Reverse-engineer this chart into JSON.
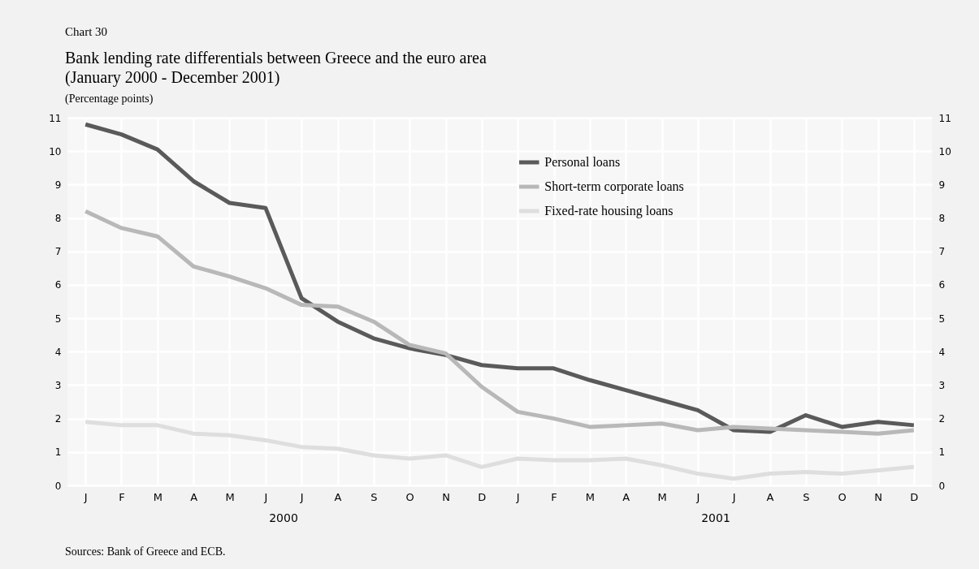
{
  "chart_data": {
    "type": "line",
    "title": "Bank lending rate differentials between Greece and the euro area\n(January 2000 - December 2001)",
    "ylabel": "(Percentage points)",
    "annotations": [
      "Chart 30",
      "2000",
      "2001",
      "Sources: Bank of Greece and ECB."
    ],
    "categories": [
      "J",
      "F",
      "M",
      "A",
      "M",
      "J",
      "J",
      "A",
      "S",
      "O",
      "N",
      "D",
      "J",
      "F",
      "M",
      "A",
      "M",
      "J",
      "J",
      "A",
      "S",
      "O",
      "N",
      "D"
    ],
    "series": [
      {
        "name": "Personal loans",
        "color": "#5a5a5a",
        "values": [
          10.8,
          10.5,
          10.05,
          9.1,
          8.45,
          8.3,
          5.6,
          4.9,
          4.4,
          4.1,
          3.9,
          3.6,
          3.5,
          3.5,
          3.15,
          2.85,
          2.55,
          2.25,
          1.65,
          1.6,
          2.1,
          1.75,
          1.9,
          1.8
        ]
      },
      {
        "name": "Short-term corporate loans",
        "color": "#b8b8b8",
        "values": [
          8.2,
          7.7,
          7.45,
          6.55,
          6.25,
          5.9,
          5.4,
          5.35,
          4.9,
          4.2,
          3.95,
          2.95,
          2.2,
          2.0,
          1.75,
          1.8,
          1.85,
          1.65,
          1.75,
          1.7,
          1.65,
          1.6,
          1.55,
          1.65
        ]
      },
      {
        "name": "Fixed-rate housing loans",
        "color": "#dedede",
        "values": [
          1.9,
          1.8,
          1.8,
          1.55,
          1.5,
          1.35,
          1.15,
          1.1,
          0.9,
          0.8,
          0.9,
          0.55,
          0.8,
          0.75,
          0.75,
          0.8,
          0.6,
          0.35,
          0.2,
          0.35,
          0.4,
          0.35,
          0.45,
          0.55
        ]
      }
    ],
    "ylim": [
      0,
      11
    ],
    "yticks": [
      0,
      1,
      2,
      3,
      4,
      5,
      6,
      7,
      8,
      9,
      10,
      11
    ],
    "y2lim": [
      0,
      11
    ],
    "y2ticks": [
      0,
      1,
      2,
      3,
      4,
      5,
      6,
      7,
      8,
      9,
      10,
      11
    ],
    "grid": true,
    "legend": "top",
    "line_style": "solid",
    "marker": "none"
  }
}
